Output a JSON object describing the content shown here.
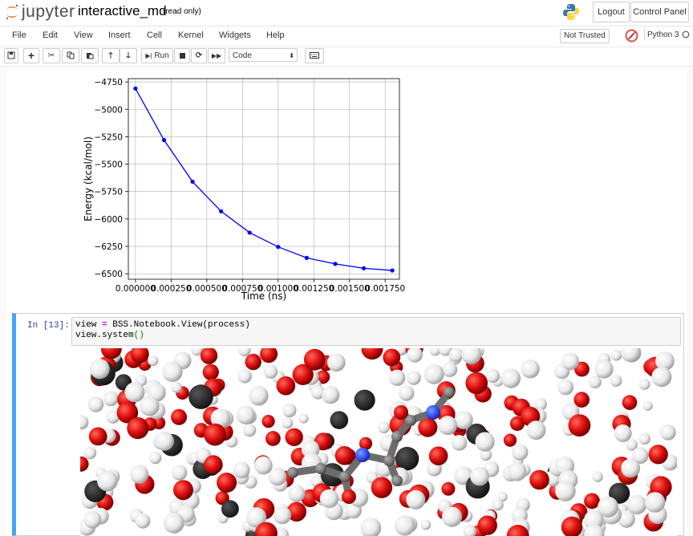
{
  "header": {
    "logo_text": "jupyter",
    "notebook_name": "interactive_md",
    "readonly_label": "(read only)",
    "logout_label": "Logout",
    "control_panel_label": "Control Panel"
  },
  "menubar": {
    "items": [
      "File",
      "Edit",
      "View",
      "Insert",
      "Cell",
      "Kernel",
      "Widgets",
      "Help"
    ],
    "trusted_label": "Not Trusted",
    "kernel_name": "Python 3"
  },
  "toolbar": {
    "run_label": "Run",
    "cell_type": "Code"
  },
  "cell": {
    "prompt": "In [13]:",
    "code_line1_a": "view ",
    "code_line1_op": "=",
    "code_line1_b": " BSS.Notebook.View(process)",
    "code_line2_a": "view.system",
    "code_line2_par": "()"
  },
  "chart_data": {
    "type": "line",
    "xlabel": "Time (ns)",
    "ylabel": "Energy (kcal/mol)",
    "x": [
      0.0,
      0.0002,
      0.0004,
      0.0006,
      0.0008,
      0.001,
      0.0012,
      0.0014,
      0.0016,
      0.0018
    ],
    "y": [
      -4810,
      -5280,
      -5660,
      -5930,
      -6125,
      -6255,
      -6355,
      -6410,
      -6450,
      -6470
    ],
    "xlim": [
      -5e-05,
      0.00185
    ],
    "ylim": [
      -6550,
      -4720
    ],
    "xticks": [
      "0.000000",
      "0.000250",
      "0.000500",
      "0.000750",
      "0.001000",
      "0.001250",
      "0.001500",
      "0.001750"
    ],
    "xtick_values": [
      0.0,
      0.00025,
      0.0005,
      0.00075,
      0.001,
      0.00125,
      0.0015,
      0.00175
    ],
    "yticks": [
      "−4750",
      "−5000",
      "−5250",
      "−5500",
      "−5750",
      "−6000",
      "−6250",
      "−6500"
    ],
    "ytick_values": [
      -4750,
      -5000,
      -5250,
      -5500,
      -5750,
      -6000,
      -6250,
      -6500
    ],
    "grid": true,
    "color": "#0000ff"
  }
}
